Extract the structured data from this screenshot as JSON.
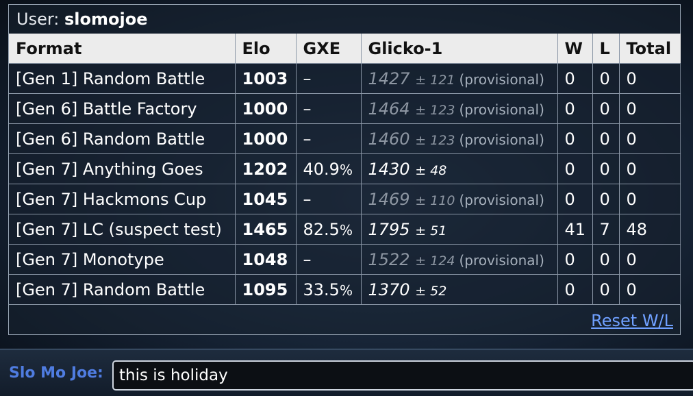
{
  "user": {
    "label": "User:",
    "name": "slomojoe"
  },
  "table": {
    "headers": [
      "Format",
      "Elo",
      "GXE",
      "Glicko-1",
      "W",
      "L",
      "Total"
    ],
    "rows": [
      {
        "format": "[Gen 1] Random Battle",
        "elo": "1003",
        "gxe": "–",
        "glicko": "1427",
        "dev": "± 121",
        "provisional": "(provisional)",
        "w": "0",
        "l": "0",
        "total": "0"
      },
      {
        "format": "[Gen 6] Battle Factory",
        "elo": "1000",
        "gxe": "–",
        "glicko": "1464",
        "dev": "± 123",
        "provisional": "(provisional)",
        "w": "0",
        "l": "0",
        "total": "0"
      },
      {
        "format": "[Gen 6] Random Battle",
        "elo": "1000",
        "gxe": "–",
        "glicko": "1460",
        "dev": "± 123",
        "provisional": "(provisional)",
        "w": "0",
        "l": "0",
        "total": "0"
      },
      {
        "format": "[Gen 7] Anything Goes",
        "elo": "1202",
        "gxe": "40.9",
        "gxe_pct": "%",
        "glicko": "1430",
        "dev": "± 48",
        "provisional": "",
        "w": "0",
        "l": "0",
        "total": "0"
      },
      {
        "format": "[Gen 7] Hackmons Cup",
        "elo": "1045",
        "gxe": "–",
        "glicko": "1469",
        "dev": "± 110",
        "provisional": "(provisional)",
        "w": "0",
        "l": "0",
        "total": "0"
      },
      {
        "format": "[Gen 7] LC (suspect test)",
        "elo": "1465",
        "gxe": "82.5",
        "gxe_pct": "%",
        "glicko": "1795",
        "dev": "± 51",
        "provisional": "",
        "w": "41",
        "l": "7",
        "total": "48"
      },
      {
        "format": "[Gen 7] Monotype",
        "elo": "1048",
        "gxe": "–",
        "glicko": "1522",
        "dev": "± 124",
        "provisional": "(provisional)",
        "w": "0",
        "l": "0",
        "total": "0"
      },
      {
        "format": "[Gen 7] Random Battle",
        "elo": "1095",
        "gxe": "33.5",
        "gxe_pct": "%",
        "glicko": "1370",
        "dev": "± 52",
        "provisional": "",
        "w": "0",
        "l": "0",
        "total": "0"
      }
    ]
  },
  "reset_label": "Reset W/L",
  "chat": {
    "name": "Slo Mo Joe:",
    "input_value": "this is holiday"
  },
  "colors": {
    "link": "#6fa0ff",
    "chat_name": "#4f7ce0",
    "header_bg": "#ececec"
  }
}
